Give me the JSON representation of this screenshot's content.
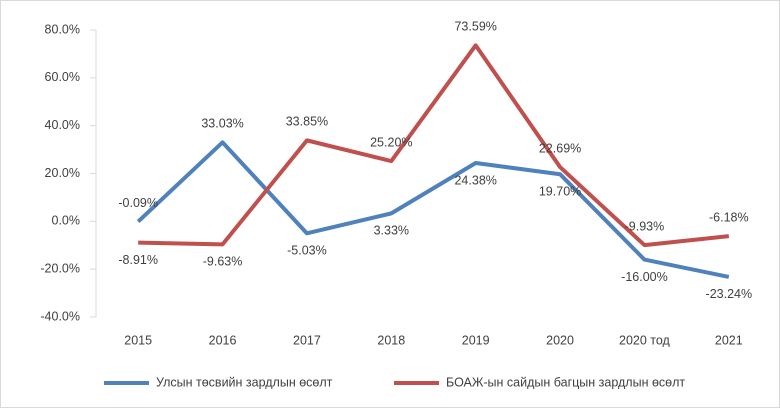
{
  "chart_data": {
    "type": "line",
    "categories": [
      "2015",
      "2016",
      "2017",
      "2018",
      "2019",
      "2020",
      "2020 тод",
      "2021"
    ],
    "series": [
      {
        "name": "Улсын төсвийн зардлын өсөлт",
        "color": "#4f81bd",
        "values": [
          -0.09,
          33.03,
          -5.03,
          3.33,
          24.38,
          19.7,
          -16.0,
          -23.24
        ],
        "value_labels": [
          "-0.09%",
          "33.03%",
          "-5.03%",
          "3.33%",
          "24.38%",
          "19.70%",
          "-16.00%",
          "-23.24%"
        ]
      },
      {
        "name": "БОАЖ-ын сайдын багцын зардлын өсөлт",
        "color": "#c0504d",
        "values": [
          -8.91,
          -9.63,
          33.85,
          25.2,
          73.59,
          22.69,
          -9.93,
          -6.18
        ],
        "value_labels": [
          "-8.91%",
          "-9.63%",
          "33.85%",
          "25.20%",
          "73.59%",
          "22.69%",
          "-9.93%",
          "-6.18%"
        ]
      }
    ],
    "ylim": [
      -40,
      80
    ],
    "yticks": [
      {
        "value": -40,
        "label": "-40.0%"
      },
      {
        "value": -20,
        "label": "-20.0%"
      },
      {
        "value": 0,
        "label": "0.0%"
      },
      {
        "value": 20,
        "label": "20.0%"
      },
      {
        "value": 40,
        "label": "40.0%"
      },
      {
        "value": 60,
        "label": "60.0%"
      },
      {
        "value": 80,
        "label": "80.0%"
      }
    ],
    "grid": false,
    "legend": "bottom"
  }
}
